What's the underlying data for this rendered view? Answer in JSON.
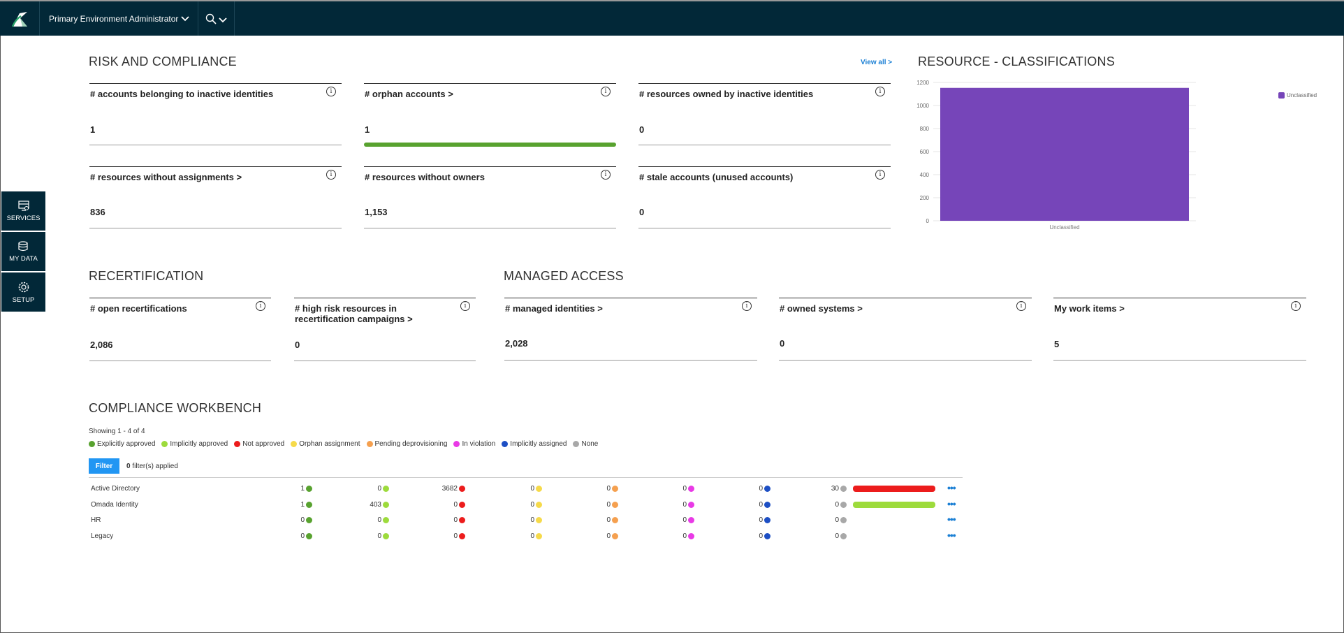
{
  "header": {
    "environment": "Primary Environment Administrator"
  },
  "sidenav": [
    {
      "label": "SERVICES",
      "icon": "services-icon"
    },
    {
      "label": "MY DATA",
      "icon": "my-data-icon"
    },
    {
      "label": "SETUP",
      "icon": "gear-icon"
    }
  ],
  "risk": {
    "title": "RISK AND COMPLIANCE",
    "view_all": "View all >",
    "cards": [
      {
        "label": "# accounts belonging to inactive identities",
        "value": "1"
      },
      {
        "label": "# orphan accounts >",
        "value": "1"
      },
      {
        "label": "# resources owned by inactive identities",
        "value": "0"
      },
      {
        "label": "# resources without assignments >",
        "value": "836"
      },
      {
        "label": "# resources without owners",
        "value": "1,153"
      },
      {
        "label": "# stale accounts (unused accounts)",
        "value": "0"
      }
    ]
  },
  "classifications": {
    "title": "RESOURCE - CLASSIFICATIONS"
  },
  "chart_data": {
    "type": "bar",
    "categories": [
      "Unclassified"
    ],
    "series": [
      {
        "name": "Unclassified",
        "values": [
          1153
        ],
        "color": "#7645b9"
      }
    ],
    "yticks": [
      "0",
      "200",
      "400",
      "600",
      "800",
      "1000",
      "1200"
    ],
    "ylim": [
      0,
      1200
    ],
    "legend_position": "top-right"
  },
  "recert": {
    "title": "RECERTIFICATION",
    "cards": [
      {
        "label": "# open recertifications",
        "value": "2,086"
      },
      {
        "label": "# high risk resources in recertification campaigns >",
        "value": "0"
      }
    ]
  },
  "managed": {
    "title": "MANAGED ACCESS",
    "cards": [
      {
        "label": "# managed identities >",
        "value": "2,028"
      },
      {
        "label": "# owned systems >",
        "value": "0"
      },
      {
        "label": "My work items >",
        "value": "5"
      }
    ]
  },
  "workbench": {
    "title": "COMPLIANCE WORKBENCH",
    "showing": "Showing 1 - 4 of 4",
    "filter_label": "Filter",
    "filter_count": "0",
    "filters_applied": "filter(s) applied",
    "legend": [
      {
        "label": "Explicitly approved",
        "color": "#58a22f"
      },
      {
        "label": "Implicitly approved",
        "color": "#9ddb3c"
      },
      {
        "label": "Not approved",
        "color": "#ec1c1c"
      },
      {
        "label": "Orphan assignment",
        "color": "#f6da4a"
      },
      {
        "label": "Pending deprovisioning",
        "color": "#f5a04f"
      },
      {
        "label": "In violation",
        "color": "#e93ae6"
      },
      {
        "label": "Implicitly assigned",
        "color": "#1d4fc4"
      },
      {
        "label": "None",
        "color": "#a8a8a8"
      }
    ],
    "rows": [
      {
        "name": "Active Directory",
        "values": [
          "1",
          "0",
          "3682",
          "0",
          "0",
          "0",
          "0",
          "30"
        ]
      },
      {
        "name": "Omada Identity",
        "values": [
          "1",
          "403",
          "0",
          "0",
          "0",
          "0",
          "0",
          "0"
        ]
      },
      {
        "name": "HR",
        "values": [
          "0",
          "0",
          "0",
          "0",
          "0",
          "0",
          "0",
          "0"
        ]
      },
      {
        "name": "Legacy",
        "values": [
          "0",
          "0",
          "0",
          "0",
          "0",
          "0",
          "0",
          "0"
        ]
      }
    ],
    "bars": [
      {
        "color": "#ec1c1c",
        "fraction": 1
      },
      {
        "color": "#9ddb3c",
        "fraction": 1
      },
      {
        "color": "",
        "fraction": 0
      },
      {
        "color": "",
        "fraction": 0
      }
    ]
  }
}
